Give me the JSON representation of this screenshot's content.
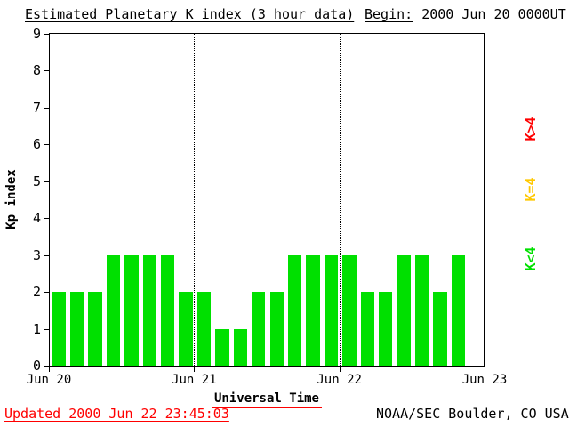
{
  "header": {
    "title": "Estimated Planetary K index (3 hour data)",
    "begin_label": "Begin:",
    "begin_value": "2000 Jun 20 0000UT"
  },
  "chart_data": {
    "type": "bar",
    "title": "Estimated Planetary K index (3 hour data)",
    "xlabel": "Universal Time",
    "ylabel": "Kp index",
    "ylim": [
      0,
      9
    ],
    "y_ticks": [
      0,
      1,
      2,
      3,
      4,
      5,
      6,
      7,
      8,
      9
    ],
    "x_ticks": [
      "Jun 20",
      "Jun 21",
      "Jun 22",
      "Jun 23"
    ],
    "bar_interval_hours": 3,
    "slots_per_view": 24,
    "day_line_slots": [
      8,
      16
    ],
    "bar_color": "#00e000",
    "grid": "dotted vertical lines at day boundaries",
    "legend_position": "right, rotated 90deg",
    "values": [
      2,
      2,
      2,
      3,
      3,
      3,
      3,
      2,
      2,
      1,
      1,
      2,
      2,
      3,
      3,
      3,
      3,
      2,
      2,
      3,
      3,
      2,
      3
    ],
    "series_note": "Kp per 3-hour interval starting 2000 Jun 20 0000UT"
  },
  "legend": {
    "items": [
      {
        "label": "K>4",
        "color": "#ff0000"
      },
      {
        "label": "K=4",
        "color": "#ffc800"
      },
      {
        "label": "K<4",
        "color": "#00e000"
      }
    ]
  },
  "footer": {
    "updated": "Updated 2000 Jun 22 23:45:03",
    "source": "NOAA/SEC Boulder, CO USA"
  }
}
